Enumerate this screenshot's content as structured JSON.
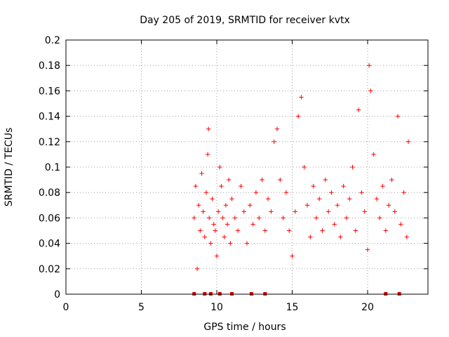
{
  "chart_data": {
    "type": "scatter",
    "title": "Day 205 of 2019, SRMTID for receiver kvtx",
    "xlabel": "GPS time / hours",
    "ylabel": "SRMTID / TECUs",
    "xlim": [
      0,
      24
    ],
    "ylim": [
      0,
      0.2
    ],
    "xticks": [
      0,
      5,
      10,
      15,
      20
    ],
    "xtick_labels": [
      "0",
      "5",
      "10",
      "15",
      "20"
    ],
    "yticks": [
      0,
      0.02,
      0.04,
      0.06,
      0.08,
      0.1,
      0.12,
      0.14,
      0.16,
      0.18,
      0.2
    ],
    "ytick_labels": [
      "0",
      "0.02",
      "0.04",
      "0.06",
      "0.08",
      "0.1",
      "0.12",
      "0.14",
      "0.16",
      "0.18",
      "0.2"
    ],
    "grid": true,
    "marker": "+",
    "color": "#ff0000",
    "zero_marker_color": "#dd0000",
    "series": [
      {
        "name": "SRMTID",
        "x": [
          8.5,
          8.6,
          8.7,
          8.8,
          8.9,
          9.0,
          9.1,
          9.2,
          9.3,
          9.4,
          9.45,
          9.5,
          9.6,
          9.7,
          9.8,
          9.9,
          10.0,
          10.1,
          10.2,
          10.3,
          10.4,
          10.5,
          10.6,
          10.7,
          10.8,
          10.9,
          11.0,
          11.2,
          11.4,
          11.6,
          11.8,
          12.0,
          12.2,
          12.4,
          12.6,
          12.8,
          13.0,
          13.2,
          13.4,
          13.6,
          13.8,
          14.0,
          14.2,
          14.4,
          14.6,
          14.8,
          15.0,
          15.2,
          15.4,
          15.6,
          15.8,
          16.0,
          16.2,
          16.4,
          16.6,
          16.8,
          17.0,
          17.2,
          17.4,
          17.6,
          17.8,
          18.0,
          18.2,
          18.4,
          18.6,
          18.8,
          19.0,
          19.2,
          19.4,
          19.6,
          19.8,
          20.0,
          20.1,
          20.2,
          20.4,
          20.6,
          20.8,
          21.0,
          21.2,
          21.4,
          21.6,
          21.8,
          22.0,
          22.2,
          22.4,
          22.6,
          22.7
        ],
        "y": [
          0.06,
          0.085,
          0.02,
          0.07,
          0.05,
          0.095,
          0.065,
          0.045,
          0.08,
          0.11,
          0.13,
          0.06,
          0.04,
          0.075,
          0.055,
          0.05,
          0.03,
          0.065,
          0.1,
          0.085,
          0.06,
          0.045,
          0.07,
          0.055,
          0.09,
          0.04,
          0.075,
          0.06,
          0.05,
          0.085,
          0.065,
          0.04,
          0.07,
          0.055,
          0.08,
          0.06,
          0.09,
          0.05,
          0.075,
          0.065,
          0.12,
          0.13,
          0.09,
          0.06,
          0.08,
          0.05,
          0.03,
          0.065,
          0.14,
          0.155,
          0.1,
          0.07,
          0.045,
          0.085,
          0.06,
          0.075,
          0.05,
          0.09,
          0.065,
          0.08,
          0.055,
          0.07,
          0.045,
          0.085,
          0.06,
          0.075,
          0.1,
          0.05,
          0.145,
          0.08,
          0.065,
          0.035,
          0.18,
          0.16,
          0.11,
          0.075,
          0.06,
          0.085,
          0.05,
          0.07,
          0.09,
          0.065,
          0.14,
          0.055,
          0.08,
          0.045,
          0.12
        ]
      }
    ],
    "zero_line_x": [
      8.5,
      9.2,
      9.6,
      10.2,
      11.0,
      12.3,
      13.2,
      21.2,
      22.1
    ]
  }
}
